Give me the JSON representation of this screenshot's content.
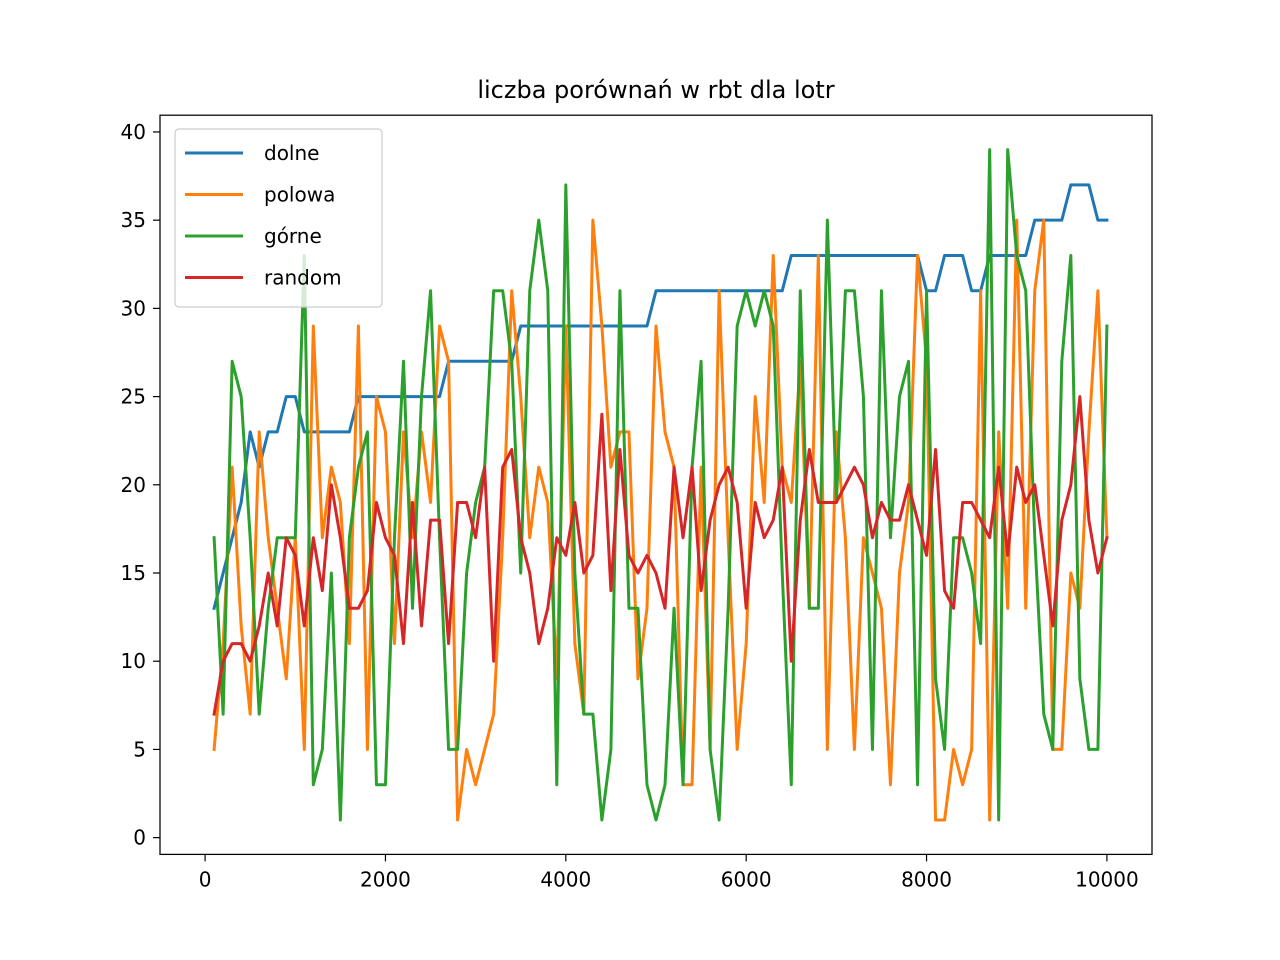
{
  "chart_data": {
    "type": "line",
    "title": "liczba porównań w rbt dla lotr",
    "xlabel": "",
    "ylabel": "",
    "xlim": [
      -500,
      10500
    ],
    "ylim": [
      -0.95,
      40.95
    ],
    "xticks": [
      0,
      2000,
      4000,
      6000,
      8000,
      10000
    ],
    "xtick_labels": [
      "0",
      "2000",
      "4000",
      "6000",
      "8000",
      "10000"
    ],
    "yticks": [
      0,
      5,
      10,
      15,
      20,
      25,
      30,
      35,
      40
    ],
    "ytick_labels": [
      "0",
      "5",
      "10",
      "15",
      "20",
      "25",
      "30",
      "35",
      "40"
    ],
    "grid": false,
    "legend_position": "upper left",
    "x": [
      100,
      200,
      300,
      400,
      500,
      600,
      700,
      800,
      900,
      1000,
      1100,
      1200,
      1300,
      1400,
      1500,
      1600,
      1700,
      1800,
      1900,
      2000,
      2100,
      2200,
      2300,
      2400,
      2500,
      2600,
      2700,
      2800,
      2900,
      3000,
      3100,
      3200,
      3300,
      3400,
      3500,
      3600,
      3700,
      3800,
      3900,
      4000,
      4100,
      4200,
      4300,
      4400,
      4500,
      4600,
      4700,
      4800,
      4900,
      5000,
      5100,
      5200,
      5300,
      5400,
      5500,
      5600,
      5700,
      5800,
      5900,
      6000,
      6100,
      6200,
      6300,
      6400,
      6500,
      6600,
      6700,
      6800,
      6900,
      7000,
      7100,
      7200,
      7300,
      7400,
      7500,
      7600,
      7700,
      7800,
      7900,
      8000,
      8100,
      8200,
      8300,
      8400,
      8500,
      8600,
      8700,
      8800,
      8900,
      9000,
      9100,
      9200,
      9300,
      9400,
      9500,
      9600,
      9700,
      9800,
      9900,
      10000
    ],
    "series": [
      {
        "name": "dolne",
        "color": "#1f77b4",
        "values": [
          13,
          15,
          17,
          19,
          23,
          21,
          23,
          23,
          25,
          25,
          23,
          23,
          23,
          23,
          23,
          23,
          25,
          25,
          25,
          25,
          25,
          25,
          25,
          25,
          25,
          25,
          27,
          27,
          27,
          27,
          27,
          27,
          27,
          27,
          29,
          29,
          29,
          29,
          29,
          29,
          29,
          29,
          29,
          29,
          29,
          29,
          29,
          29,
          29,
          31,
          31,
          31,
          31,
          31,
          31,
          31,
          31,
          31,
          31,
          31,
          31,
          31,
          31,
          31,
          33,
          33,
          33,
          33,
          33,
          33,
          33,
          33,
          33,
          33,
          33,
          33,
          33,
          33,
          33,
          31,
          31,
          33,
          33,
          33,
          31,
          31,
          33,
          33,
          33,
          33,
          33,
          35,
          35,
          35,
          35,
          37,
          37,
          37,
          35,
          35
        ]
      },
      {
        "name": "polowa",
        "color": "#ff7f0e",
        "values": [
          5,
          11,
          21,
          12,
          7,
          23,
          17,
          13,
          9,
          17,
          5,
          29,
          17,
          21,
          19,
          11,
          29,
          5,
          25,
          23,
          11,
          23,
          17,
          23,
          19,
          29,
          27,
          1,
          5,
          3,
          5,
          7,
          17,
          31,
          25,
          17,
          21,
          19,
          9,
          29,
          11,
          7,
          35,
          29,
          21,
          23,
          23,
          9,
          13,
          29,
          23,
          21,
          3,
          3,
          21,
          5,
          31,
          17,
          5,
          11,
          25,
          19,
          33,
          21,
          19,
          27,
          13,
          33,
          5,
          23,
          17,
          5,
          17,
          15,
          13,
          3,
          15,
          19,
          33,
          27,
          1,
          1,
          5,
          3,
          5,
          31,
          1,
          23,
          13,
          35,
          13,
          31,
          35,
          5,
          5,
          15,
          13,
          23,
          31,
          17
        ]
      },
      {
        "name": "górne",
        "color": "#2ca02c",
        "values": [
          17,
          7,
          27,
          25,
          17,
          7,
          13,
          17,
          17,
          17,
          33,
          3,
          5,
          15,
          1,
          17,
          21,
          23,
          3,
          3,
          17,
          27,
          13,
          25,
          31,
          17,
          5,
          5,
          15,
          19,
          21,
          31,
          31,
          27,
          15,
          31,
          35,
          31,
          3,
          37,
          15,
          7,
          7,
          1,
          5,
          31,
          13,
          13,
          3,
          1,
          3,
          13,
          3,
          21,
          27,
          5,
          1,
          13,
          29,
          31,
          29,
          31,
          29,
          15,
          3,
          31,
          13,
          13,
          35,
          19,
          31,
          31,
          25,
          5,
          31,
          17,
          25,
          27,
          3,
          31,
          9,
          5,
          17,
          17,
          15,
          11,
          39,
          1,
          39,
          33,
          31,
          17,
          7,
          5,
          27,
          33,
          9,
          5,
          5,
          29
        ]
      },
      {
        "name": "random",
        "color": "#d62728",
        "values": [
          7,
          10,
          11,
          11,
          10,
          12,
          15,
          12,
          17,
          16,
          12,
          17,
          14,
          20,
          17,
          13,
          13,
          14,
          19,
          17,
          16,
          11,
          19,
          12,
          18,
          18,
          11,
          19,
          19,
          17,
          21,
          10,
          21,
          22,
          17,
          15,
          11,
          13,
          17,
          16,
          19,
          15,
          16,
          24,
          14,
          22,
          16,
          15,
          16,
          15,
          13,
          21,
          17,
          21,
          14,
          18,
          20,
          21,
          19,
          13,
          19,
          17,
          18,
          21,
          10,
          18,
          22,
          19,
          19,
          19,
          20,
          21,
          20,
          17,
          19,
          18,
          18,
          20,
          18,
          16,
          22,
          14,
          13,
          19,
          19,
          18,
          17,
          21,
          16,
          21,
          19,
          20,
          16,
          12,
          18,
          20,
          25,
          18,
          15,
          17
        ]
      }
    ]
  }
}
